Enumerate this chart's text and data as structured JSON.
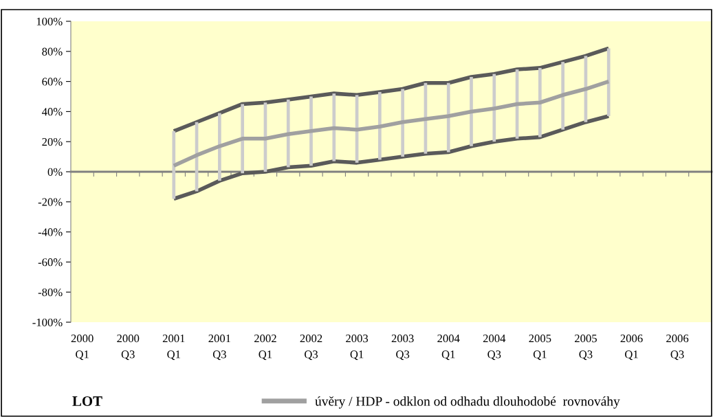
{
  "chart_data": {
    "type": "line",
    "categories": [
      "2000\nQ1",
      null,
      "2000\nQ3",
      null,
      "2001\nQ1",
      null,
      "2001\nQ3",
      null,
      "2002\nQ1",
      null,
      "2002\nQ3",
      null,
      "2003\nQ1",
      null,
      "2003\nQ3",
      null,
      "2004\nQ1",
      null,
      "2004\nQ3",
      null,
      "2005\nQ1",
      null,
      "2005\nQ3",
      null,
      "2006\nQ1",
      null,
      "2006\nQ3",
      null
    ],
    "series": [
      {
        "color": "#5a5a5a",
        "values": [
          null,
          null,
          null,
          null,
          27,
          33,
          39,
          45,
          46,
          48,
          50,
          52,
          51,
          53,
          55,
          59,
          59,
          63,
          65,
          68,
          69,
          73,
          77,
          82,
          null,
          null,
          null,
          null
        ]
      },
      {
        "color": "#5a5a5a",
        "values": [
          null,
          null,
          null,
          null,
          -18,
          -13,
          -6,
          -1,
          0,
          3,
          4,
          7,
          6,
          8,
          10,
          12,
          13,
          17,
          20,
          22,
          23,
          28,
          33,
          37,
          null,
          null,
          null,
          null
        ]
      },
      {
        "type": "bar",
        "color": "#cccccc",
        "base": [
          null,
          null,
          null,
          null,
          -18,
          -13,
          -6,
          -1,
          0,
          3,
          4,
          7,
          6,
          8,
          10,
          12,
          13,
          17,
          20,
          22,
          23,
          28,
          33,
          37,
          null,
          null,
          null,
          null
        ],
        "values": [
          null,
          null,
          null,
          null,
          45,
          46,
          45,
          46,
          46,
          45,
          46,
          45,
          45,
          45,
          45,
          47,
          46,
          46,
          45,
          46,
          46,
          45,
          44,
          45,
          null,
          null,
          null,
          null
        ]
      },
      {
        "name": "úvěry / HDP - odklon od odhadu dlouhodobé  rovnováhy",
        "color": "#a0a0a0",
        "values": [
          null,
          null,
          null,
          null,
          4,
          11,
          17,
          22,
          22,
          25,
          27,
          29,
          28,
          30,
          33,
          35,
          37,
          40,
          42,
          45,
          46,
          51,
          55,
          60,
          null,
          null,
          null,
          null
        ]
      }
    ],
    "ylim": [
      -100,
      100
    ],
    "yticks": [
      {
        "value": -100,
        "label": "-100%"
      },
      {
        "value": -80,
        "label": "-80%"
      },
      {
        "value": -60,
        "label": "-60%"
      },
      {
        "value": -40,
        "label": "-40%"
      },
      {
        "value": -20,
        "label": "-20%"
      },
      {
        "value": 0,
        "label": "0%"
      },
      {
        "value": 20,
        "label": "20%"
      },
      {
        "value": 40,
        "label": "40%"
      },
      {
        "value": 60,
        "label": "60%"
      },
      {
        "value": 80,
        "label": "80%"
      },
      {
        "value": 100,
        "label": "100%"
      }
    ],
    "legend": "bottom",
    "annotations": [
      "LOT"
    ]
  }
}
